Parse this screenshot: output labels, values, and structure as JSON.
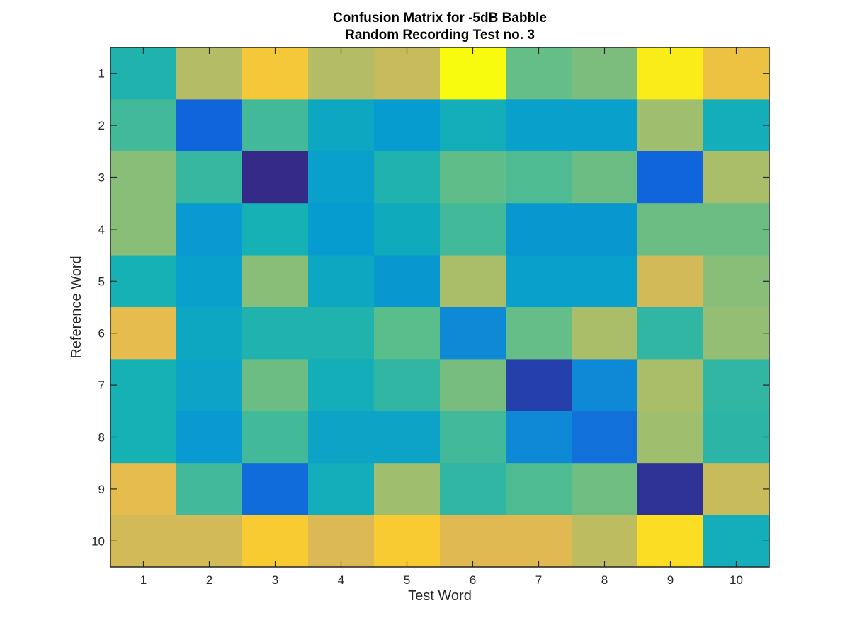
{
  "chart_data": {
    "type": "heatmap",
    "title": "Confusion Matrix for -5dB Babble",
    "subtitle": "Random Recording Test no. 3",
    "xlabel": "Test Word",
    "ylabel": "Reference Word",
    "x_categories": [
      "1",
      "2",
      "3",
      "4",
      "5",
      "6",
      "7",
      "8",
      "9",
      "10"
    ],
    "y_categories": [
      "1",
      "2",
      "3",
      "4",
      "5",
      "6",
      "7",
      "8",
      "9",
      "10"
    ],
    "colormap": "parula",
    "color_range": [
      0,
      1
    ],
    "colorbar": false,
    "grid": false,
    "values": [
      [
        0.52,
        0.78,
        0.92,
        0.78,
        0.82,
        1.0,
        0.64,
        0.68,
        0.98,
        0.9
      ],
      [
        0.58,
        0.15,
        0.58,
        0.44,
        0.38,
        0.48,
        0.4,
        0.4,
        0.74,
        0.48
      ],
      [
        0.7,
        0.56,
        0.0,
        0.4,
        0.52,
        0.63,
        0.6,
        0.65,
        0.15,
        0.76
      ],
      [
        0.7,
        0.37,
        0.5,
        0.38,
        0.46,
        0.58,
        0.36,
        0.36,
        0.65,
        0.65
      ],
      [
        0.5,
        0.4,
        0.7,
        0.44,
        0.36,
        0.76,
        0.4,
        0.4,
        0.84,
        0.7
      ],
      [
        0.88,
        0.44,
        0.52,
        0.52,
        0.62,
        0.3,
        0.64,
        0.76,
        0.55,
        0.72
      ],
      [
        0.5,
        0.42,
        0.65,
        0.48,
        0.55,
        0.67,
        0.05,
        0.3,
        0.76,
        0.55
      ],
      [
        0.5,
        0.37,
        0.58,
        0.42,
        0.42,
        0.58,
        0.3,
        0.2,
        0.74,
        0.54
      ],
      [
        0.88,
        0.58,
        0.18,
        0.48,
        0.74,
        0.55,
        0.6,
        0.66,
        0.02,
        0.82
      ],
      [
        0.84,
        0.84,
        0.93,
        0.86,
        0.93,
        0.87,
        0.87,
        0.8,
        0.96,
        0.48
      ]
    ]
  }
}
